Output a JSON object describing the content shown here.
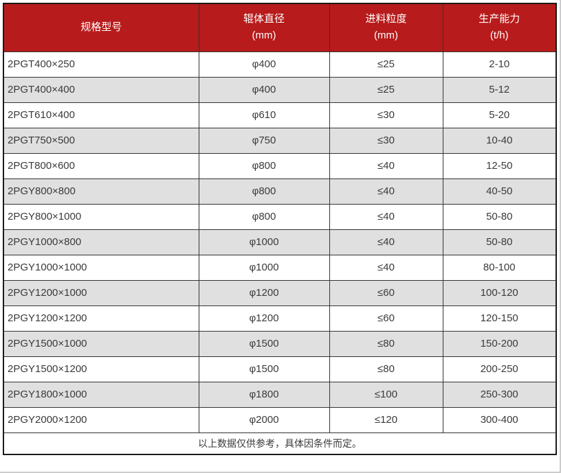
{
  "table": {
    "headers": [
      {
        "title": "规格型号",
        "unit": ""
      },
      {
        "title": "辊体直径",
        "unit": "(mm)"
      },
      {
        "title": "进料粒度",
        "unit": "(mm)"
      },
      {
        "title": "生产能力",
        "unit": "(t/h)"
      }
    ],
    "rows": [
      [
        "2PGT400×250",
        "φ400",
        "≤25",
        "2-10"
      ],
      [
        "2PGT400×400",
        "φ400",
        "≤25",
        "5-12"
      ],
      [
        "2PGT610×400",
        "φ610",
        "≤30",
        "5-20"
      ],
      [
        "2PGT750×500",
        "φ750",
        "≤30",
        "10-40"
      ],
      [
        "2PGT800×600",
        "φ800",
        "≤40",
        "12-50"
      ],
      [
        "2PGY800×800",
        "φ800",
        "≤40",
        "40-50"
      ],
      [
        "2PGY800×1000",
        "φ800",
        "≤40",
        "50-80"
      ],
      [
        "2PGY1000×800",
        "φ1000",
        "≤40",
        "50-80"
      ],
      [
        "2PGY1000×1000",
        "φ1000",
        "≤40",
        "80-100"
      ],
      [
        "2PGY1200×1000",
        "φ1200",
        "≤60",
        "100-120"
      ],
      [
        "2PGY1200×1200",
        "φ1200",
        "≤60",
        "120-150"
      ],
      [
        "2PGY1500×1000",
        "φ1500",
        "≤80",
        "150-200"
      ],
      [
        "2PGY1500×1200",
        "φ1500",
        "≤80",
        "200-250"
      ],
      [
        "2PGY1800×1000",
        "φ1800",
        "≤100",
        "250-300"
      ],
      [
        "2PGY2000×1200",
        "φ2000",
        "≤120",
        "300-400"
      ]
    ],
    "footer_note": "以上数据仅供参考，具体因条件而定。"
  },
  "colors": {
    "header_bg": "#b81b1b",
    "header_text": "#ffffff",
    "row_bg": "#ffffff",
    "row_alt_bg": "#e0e0e0",
    "border": "#333333",
    "outer_border": "#1a1a1a",
    "cell_text": "#3a3a3a"
  }
}
